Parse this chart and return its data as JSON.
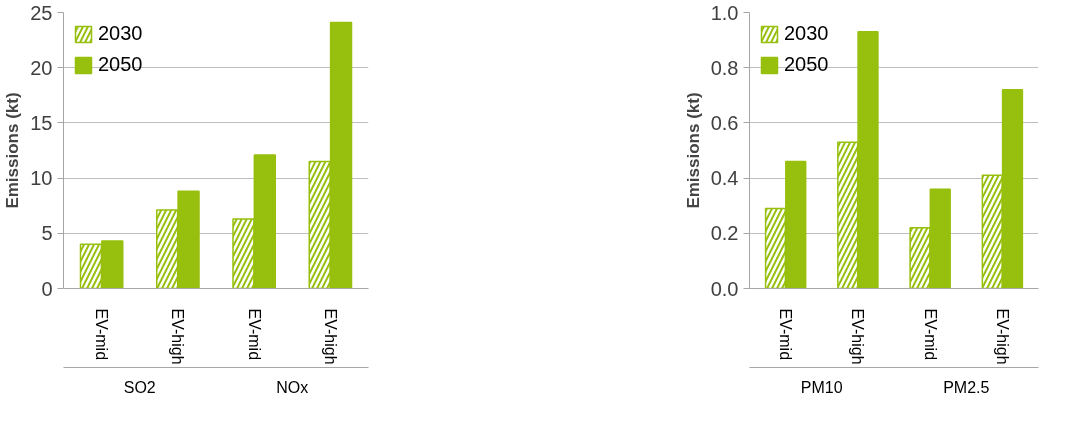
{
  "chart_data": [
    {
      "type": "bar",
      "ylabel": "Emissions (kt)",
      "categories": [
        "EV-mid",
        "EV-high",
        "EV-mid",
        "EV-high"
      ],
      "annotations": [
        "SO2",
        "NOx"
      ],
      "series": [
        {
          "name": "2030",
          "color": "#97bf0d",
          "values": [
            4.0,
            7.1,
            6.3,
            11.5
          ]
        },
        {
          "name": "2050",
          "color": "#97bf0d",
          "values": [
            4.3,
            8.8,
            12.1,
            24.1
          ]
        }
      ],
      "ylim": [
        0,
        25
      ],
      "yticks": [
        0,
        5,
        10,
        15,
        20,
        25
      ],
      "grid": "y",
      "legend": "top left"
    },
    {
      "type": "bar",
      "ylabel": "Emissions (kt)",
      "categories": [
        "EV-mid",
        "EV-high",
        "EV-mid",
        "EV-high"
      ],
      "annotations": [
        "PM10",
        "PM2.5"
      ],
      "series": [
        {
          "name": "2030",
          "color": "#97bf0d",
          "values": [
            0.29,
            0.53,
            0.22,
            0.41
          ]
        },
        {
          "name": "2050",
          "color": "#97bf0d",
          "values": [
            0.46,
            0.93,
            0.36,
            0.72
          ]
        }
      ],
      "ylim": [
        0,
        1.0
      ],
      "yticks": [
        {
          "value": 0,
          "label": "0.0"
        },
        0.2,
        0.4,
        0.6,
        0.8,
        {
          "value": 1.0,
          "label": "1.0"
        }
      ],
      "grid": "y",
      "legend": "top left"
    }
  ]
}
